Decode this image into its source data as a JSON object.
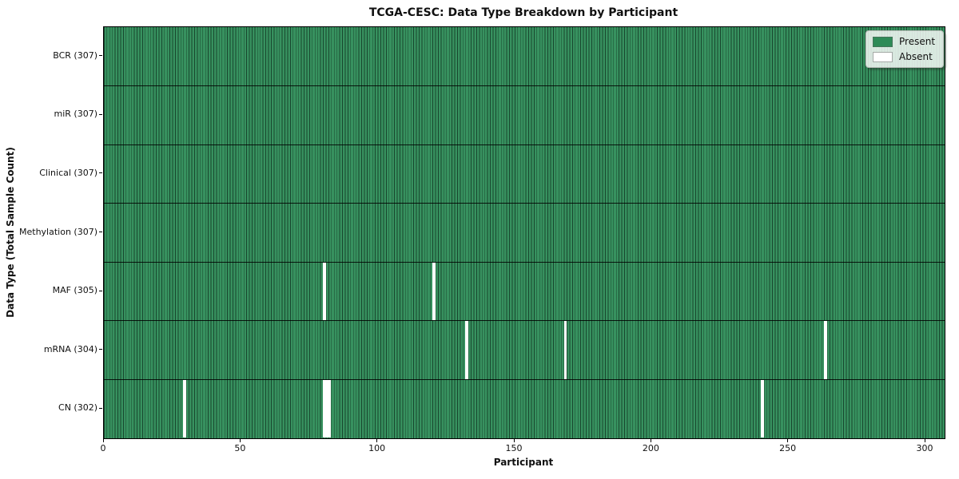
{
  "chart_data": {
    "type": "heatmap",
    "title": "TCGA-CESC: Data Type Breakdown by Participant",
    "xlabel": "Participant",
    "ylabel": "Data Type (Total Sample Count)",
    "n_participants": 307,
    "xlim": [
      0,
      307
    ],
    "x_ticks": [
      0,
      50,
      100,
      150,
      200,
      250,
      300
    ],
    "grid": false,
    "rows": [
      {
        "data_type": "BCR",
        "label": "BCR (307)",
        "present_count": 307,
        "absent_participants": []
      },
      {
        "data_type": "miR",
        "label": "miR (307)",
        "present_count": 307,
        "absent_participants": []
      },
      {
        "data_type": "Clinical",
        "label": "Clinical (307)",
        "present_count": 307,
        "absent_participants": []
      },
      {
        "data_type": "Methylation",
        "label": "Methylation (307)",
        "present_count": 307,
        "absent_participants": []
      },
      {
        "data_type": "MAF",
        "label": "MAF (305)",
        "present_count": 305,
        "absent_participants": [
          80,
          120
        ]
      },
      {
        "data_type": "mRNA",
        "label": "mRNA (304)",
        "present_count": 304,
        "absent_participants": [
          132,
          168,
          263
        ]
      },
      {
        "data_type": "CN",
        "label": "CN (302)",
        "present_count": 302,
        "absent_participants": [
          29,
          80,
          81,
          82,
          240
        ]
      }
    ],
    "colors": {
      "present": "#2e8b57",
      "absent": "#ffffff"
    },
    "legend_position": "upper right",
    "legend": [
      {
        "label": "Present",
        "color": "#2e8b57"
      },
      {
        "label": "Absent",
        "color": "#ffffff"
      }
    ]
  }
}
